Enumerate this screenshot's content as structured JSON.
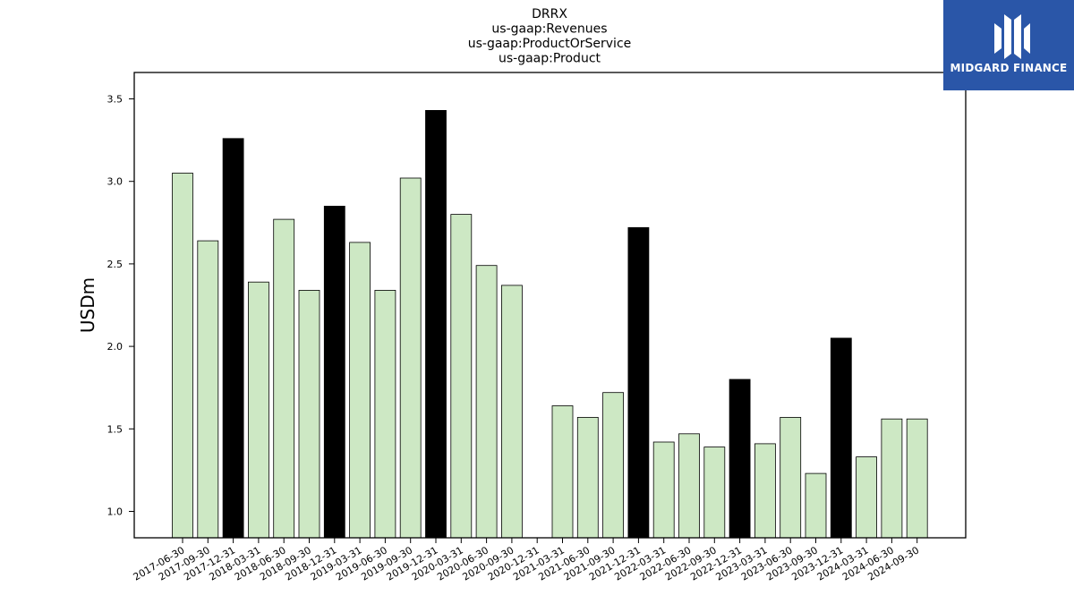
{
  "chart_data": {
    "type": "bar",
    "title_lines": [
      "DRRX",
      "us-gaap:Revenues",
      "us-gaap:ProductOrService",
      "us-gaap:Product"
    ],
    "xlabel": "",
    "ylabel": "USDm",
    "ylim": [
      0.84,
      3.66
    ],
    "yticks": [
      1.0,
      1.5,
      2.0,
      2.5,
      3.0,
      3.5
    ],
    "grid": false,
    "colors": {
      "quarter": "#cde8c4",
      "year_end": "#000000",
      "edge": "#000000"
    },
    "categories": [
      "2017-06-30",
      "2017-09-30",
      "2017-12-31",
      "2018-03-31",
      "2018-06-30",
      "2018-09-30",
      "2018-12-31",
      "2019-03-31",
      "2019-06-30",
      "2019-09-30",
      "2019-12-31",
      "2020-03-31",
      "2020-06-30",
      "2020-09-30",
      "2020-12-31",
      "2021-03-31",
      "2021-06-30",
      "2021-09-30",
      "2021-12-31",
      "2022-03-31",
      "2022-06-30",
      "2022-09-30",
      "2022-12-31",
      "2023-03-31",
      "2023-06-30",
      "2023-09-30",
      "2023-12-31",
      "2024-03-31",
      "2024-06-30",
      "2024-09-30"
    ],
    "values": [
      3.05,
      2.64,
      3.26,
      2.39,
      2.77,
      2.34,
      2.85,
      2.63,
      2.34,
      3.02,
      3.43,
      2.8,
      2.49,
      2.37,
      null,
      1.64,
      1.57,
      1.72,
      2.72,
      1.42,
      1.47,
      1.39,
      1.8,
      1.41,
      1.57,
      1.23,
      2.05,
      1.33,
      1.56,
      1.56
    ]
  },
  "logo": {
    "text": "MIDGARD FINANCE",
    "icon": "midgard-logo-icon"
  }
}
